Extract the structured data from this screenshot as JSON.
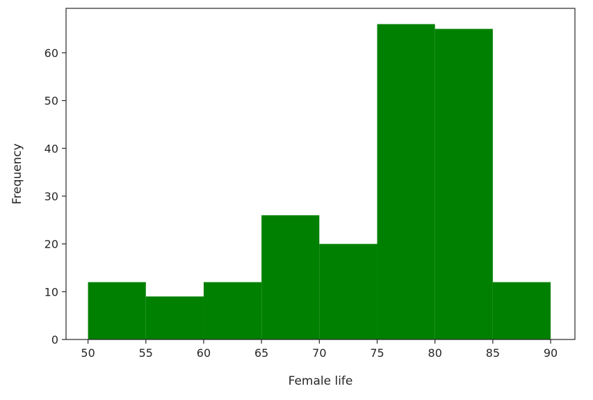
{
  "chart_data": {
    "type": "bar",
    "subtype": "histogram",
    "bin_edges": [
      50,
      55,
      60,
      65,
      70,
      75,
      80,
      85,
      90
    ],
    "values": [
      12,
      9,
      12,
      26,
      20,
      66,
      65,
      12
    ],
    "xlabel": "Female life",
    "ylabel": "Frequency",
    "xlim": [
      48.1,
      92.1
    ],
    "ylim": [
      0,
      69.3
    ],
    "x_ticks": [
      50,
      55,
      60,
      65,
      70,
      75,
      80,
      85,
      90
    ],
    "y_ticks": [
      0,
      10,
      20,
      30,
      40,
      50,
      60
    ],
    "grid": false,
    "bar_color": "#008000",
    "axis_color": "#262626"
  }
}
